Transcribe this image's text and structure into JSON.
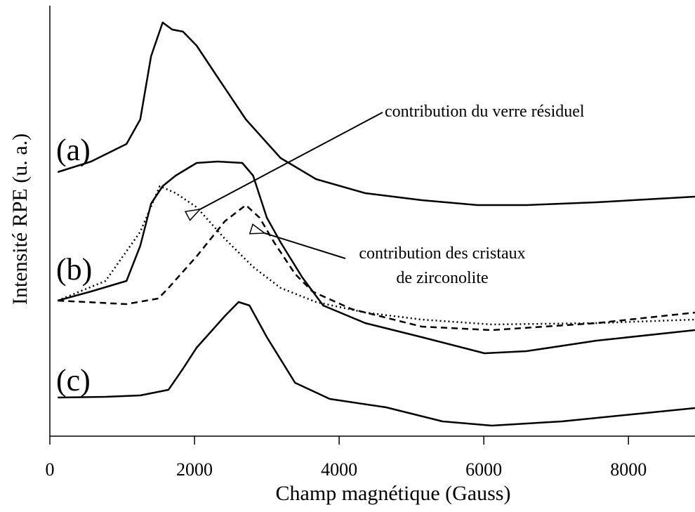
{
  "chart_data": {
    "type": "line",
    "xlabel": "Champ magnétique (Gauss)",
    "ylabel": "Intensité RPE (u. a.)",
    "xlim": [
      0,
      8920
    ],
    "xticks": [
      0,
      2000,
      4000,
      6000,
      8000
    ],
    "ylim": [
      0,
      613
    ],
    "series": [
      {
        "name": "(a)",
        "color": "#000000",
        "style": "solid",
        "x": [
          110,
          570,
          1060,
          1250,
          1400,
          1560,
          1690,
          1840,
          2030,
          2320,
          2710,
          3190,
          3680,
          4360,
          5140,
          5910,
          6590,
          7560,
          8920
        ],
        "values": [
          376,
          391,
          416,
          451,
          541,
          589,
          579,
          576,
          556,
          511,
          451,
          396,
          366,
          346,
          336,
          329,
          329,
          333,
          341
        ]
      },
      {
        "name": "(b)",
        "color": "#000000",
        "style": "solid",
        "x": [
          110,
          570,
          1060,
          1250,
          1400,
          1560,
          1740,
          2030,
          2320,
          2660,
          2810,
          3000,
          3190,
          3490,
          3780,
          4360,
          5140,
          6010,
          6590,
          7560,
          8920
        ],
        "values": [
          193,
          206,
          221,
          271,
          331,
          356,
          371,
          389,
          391,
          389,
          371,
          311,
          276,
          226,
          186,
          161,
          141,
          118,
          121,
          136,
          151
        ]
      },
      {
        "color": "#000000",
        "style": "dotted",
        "x": [
          110,
          770,
          1250,
          1520,
          1740,
          2030,
          2420,
          2810,
          3190,
          3680,
          4360,
          5140,
          6110,
          7560,
          8920
        ],
        "values": [
          193,
          221,
          291,
          356,
          346,
          326,
          281,
          241,
          211,
          191,
          176,
          166,
          159,
          161,
          166
        ]
      },
      {
        "color": "#000000",
        "style": "dashed",
        "x": [
          110,
          1060,
          1500,
          1640,
          2030,
          2420,
          2710,
          2900,
          3100,
          3390,
          3630,
          4170,
          5140,
          6110,
          7560,
          8920
        ],
        "values": [
          193,
          188,
          196,
          211,
          256,
          306,
          329,
          311,
          276,
          231,
          206,
          181,
          156,
          151,
          161,
          176
        ]
      },
      {
        "name": "(c)",
        "color": "#000000",
        "style": "solid",
        "x": [
          110,
          770,
          1250,
          1640,
          1840,
          2030,
          2420,
          2610,
          2760,
          3000,
          3390,
          3870,
          4650,
          5430,
          6110,
          7080,
          8050,
          8920
        ],
        "values": [
          55,
          56,
          58,
          66,
          96,
          126,
          171,
          191,
          186,
          141,
          76,
          53,
          41,
          21,
          15,
          21,
          31,
          40
        ]
      }
    ],
    "annotations": [
      {
        "lines": [
          "contribution du verre résiduel"
        ]
      },
      {
        "lines": [
          "contribution des cristaux",
          "de zirconolite"
        ]
      }
    ]
  }
}
